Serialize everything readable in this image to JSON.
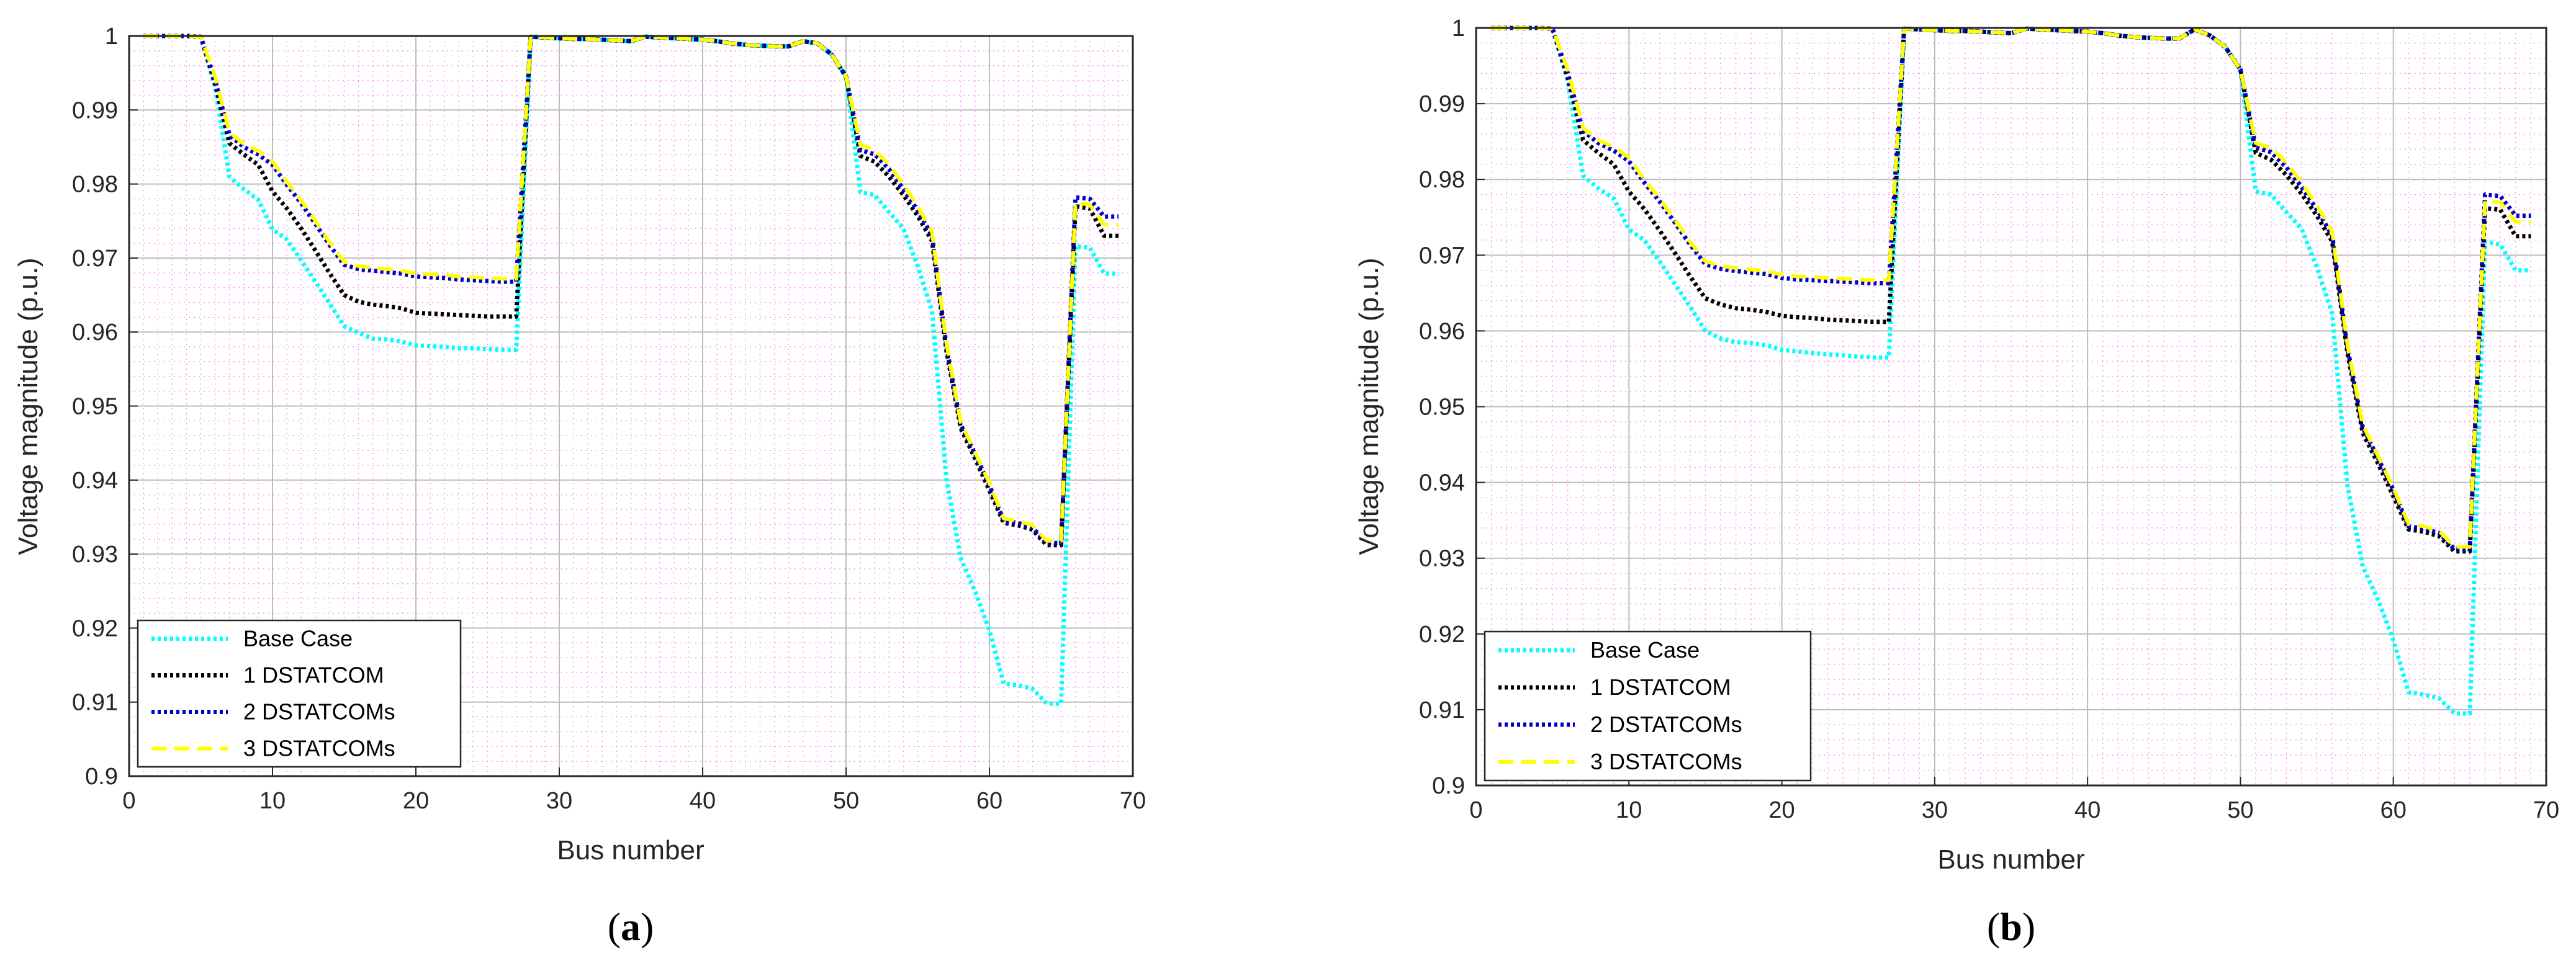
{
  "colors": {
    "base": "#00ffff",
    "one": "#000000",
    "two": "#0000cc",
    "three": "#ffff00",
    "grid_minor": "#ff66ff",
    "grid_major": "#bdbdbd"
  },
  "chart_data": [
    {
      "panel": "a",
      "caption_open": "(",
      "caption_letter": "a",
      "caption_close": ")",
      "type": "line",
      "xlabel": "Bus number",
      "ylabel": "Voltage magnitude (p.u.)",
      "xlim": [
        0,
        70
      ],
      "ylim": [
        0.9,
        1.0
      ],
      "xticks": [
        "0",
        "10",
        "20",
        "30",
        "40",
        "50",
        "60",
        "70"
      ],
      "yticks": [
        "0.9",
        "0.91",
        "0.92",
        "0.93",
        "0.94",
        "0.95",
        "0.96",
        "0.97",
        "0.98",
        "0.99",
        "1"
      ],
      "legend_position": "bottom-left",
      "x": [
        1,
        2,
        3,
        4,
        5,
        6,
        7,
        8,
        9,
        10,
        11,
        12,
        13,
        14,
        15,
        16,
        17,
        18,
        19,
        20,
        21,
        22,
        23,
        24,
        25,
        26,
        27,
        28,
        29,
        30,
        31,
        32,
        33,
        34,
        35,
        36,
        37,
        38,
        39,
        40,
        41,
        42,
        43,
        44,
        45,
        46,
        47,
        48,
        49,
        50,
        51,
        52,
        53,
        54,
        55,
        56,
        57,
        58,
        59,
        60,
        61,
        62,
        63,
        64,
        65,
        66,
        67,
        68,
        69
      ],
      "series": [
        {
          "name": "Base Case",
          "values": [
            1.0,
            1.0,
            1.0,
            1.0,
            0.9999,
            0.9931,
            0.981,
            0.9793,
            0.9779,
            0.9739,
            0.9725,
            0.9697,
            0.9668,
            0.9638,
            0.9608,
            0.9599,
            0.9591,
            0.959,
            0.9587,
            0.9582,
            0.9581,
            0.958,
            0.9578,
            0.9578,
            0.9577,
            0.9576,
            0.9576,
            0.9999,
            0.9998,
            0.9997,
            0.9996,
            0.9996,
            0.9995,
            0.9994,
            0.9993,
            0.9999,
            0.9998,
            0.9997,
            0.9996,
            0.9995,
            0.9993,
            0.999,
            0.9988,
            0.9987,
            0.9986,
            0.9986,
            0.9993,
            0.999,
            0.9975,
            0.9945,
            0.9789,
            0.9785,
            0.9762,
            0.974,
            0.9689,
            0.9628,
            0.9401,
            0.9294,
            0.925,
            0.9197,
            0.9125,
            0.9123,
            0.9118,
            0.9098,
            0.9098,
            0.9716,
            0.9714,
            0.9679,
            0.9679
          ]
        },
        {
          "name": "1 DSTATCOM",
          "values": [
            1.0,
            1.0,
            1.0,
            1.0,
            0.9999,
            0.9935,
            0.9855,
            0.984,
            0.9826,
            0.979,
            0.9767,
            0.974,
            0.971,
            0.9679,
            0.965,
            0.9641,
            0.9637,
            0.9635,
            0.9632,
            0.9626,
            0.9625,
            0.9624,
            0.9623,
            0.9622,
            0.9621,
            0.9621,
            0.9621,
            0.9999,
            0.9998,
            0.9997,
            0.9996,
            0.9996,
            0.9995,
            0.9994,
            0.9993,
            0.9999,
            0.9998,
            0.9997,
            0.9996,
            0.9995,
            0.9993,
            0.999,
            0.9988,
            0.9987,
            0.9986,
            0.9986,
            0.9993,
            0.999,
            0.9975,
            0.9945,
            0.9838,
            0.983,
            0.981,
            0.9785,
            0.9757,
            0.9723,
            0.9575,
            0.947,
            0.9429,
            0.9386,
            0.9342,
            0.9339,
            0.9333,
            0.9312,
            0.9312,
            0.977,
            0.9767,
            0.973,
            0.973
          ]
        },
        {
          "name": "2 DSTATCOMs",
          "values": [
            1.0,
            1.0,
            1.0,
            1.0,
            0.9999,
            0.994,
            0.9866,
            0.985,
            0.984,
            0.9826,
            0.9799,
            0.9774,
            0.9746,
            0.9717,
            0.9691,
            0.9685,
            0.9683,
            0.9681,
            0.9679,
            0.9675,
            0.9674,
            0.9673,
            0.9671,
            0.967,
            0.9669,
            0.9668,
            0.9668,
            0.9999,
            0.9998,
            0.9997,
            0.9996,
            0.9996,
            0.9995,
            0.9994,
            0.9993,
            0.9999,
            0.9998,
            0.9997,
            0.9996,
            0.9995,
            0.9993,
            0.999,
            0.9988,
            0.9987,
            0.9986,
            0.9986,
            0.9993,
            0.999,
            0.9975,
            0.9945,
            0.9846,
            0.984,
            0.982,
            0.9793,
            0.9764,
            0.973,
            0.9581,
            0.9475,
            0.9435,
            0.9393,
            0.9345,
            0.9342,
            0.9336,
            0.9315,
            0.9315,
            0.9782,
            0.978,
            0.9756,
            0.9756
          ]
        },
        {
          "name": "3 DSTATCOMs",
          "values": [
            1.0,
            1.0,
            1.0,
            1.0,
            0.9999,
            0.9945,
            0.987,
            0.9854,
            0.9845,
            0.9831,
            0.9803,
            0.9778,
            0.975,
            0.9721,
            0.9695,
            0.9689,
            0.9687,
            0.9685,
            0.9683,
            0.9679,
            0.9678,
            0.9677,
            0.9675,
            0.9674,
            0.9673,
            0.9672,
            0.9672,
            0.9999,
            0.9998,
            0.9997,
            0.9996,
            0.9996,
            0.9995,
            0.9994,
            0.9993,
            0.9999,
            0.9998,
            0.9997,
            0.9996,
            0.9995,
            0.9993,
            0.999,
            0.9988,
            0.9987,
            0.9986,
            0.9986,
            0.9993,
            0.999,
            0.9975,
            0.9945,
            0.9853,
            0.9846,
            0.9826,
            0.9799,
            0.977,
            0.9735,
            0.9585,
            0.9478,
            0.9438,
            0.9396,
            0.9348,
            0.9345,
            0.9339,
            0.9318,
            0.9318,
            0.9775,
            0.9772,
            0.9745,
            0.9745
          ]
        }
      ]
    },
    {
      "panel": "b",
      "caption_open": "(",
      "caption_letter": "b",
      "caption_close": ")",
      "type": "line",
      "xlabel": "Bus number",
      "ylabel": "Voltage magnitude (p.u.)",
      "xlim": [
        0,
        70
      ],
      "ylim": [
        0.9,
        1.0
      ],
      "xticks": [
        "0",
        "10",
        "20",
        "30",
        "40",
        "50",
        "60",
        "70"
      ],
      "yticks": [
        "0.9",
        "0.91",
        "0.92",
        "0.93",
        "0.94",
        "0.95",
        "0.96",
        "0.97",
        "0.98",
        "0.99",
        "1"
      ],
      "legend_position": "bottom-left",
      "x": [
        1,
        2,
        3,
        4,
        5,
        6,
        7,
        8,
        9,
        10,
        11,
        12,
        13,
        14,
        15,
        16,
        17,
        18,
        19,
        20,
        21,
        22,
        23,
        24,
        25,
        26,
        27,
        28,
        29,
        30,
        31,
        32,
        33,
        34,
        35,
        36,
        37,
        38,
        39,
        40,
        41,
        42,
        43,
        44,
        45,
        46,
        47,
        48,
        49,
        50,
        51,
        52,
        53,
        54,
        55,
        56,
        57,
        58,
        59,
        60,
        61,
        62,
        63,
        64,
        65,
        66,
        67,
        68,
        69
      ],
      "series": [
        {
          "name": "Base Case",
          "values": [
            1.0,
            1.0,
            1.0,
            1.0,
            0.9999,
            0.993,
            0.9805,
            0.9788,
            0.9775,
            0.9734,
            0.972,
            0.9692,
            0.9662,
            0.9632,
            0.96,
            0.959,
            0.9585,
            0.9584,
            0.9581,
            0.9575,
            0.9573,
            0.9571,
            0.9569,
            0.9568,
            0.9566,
            0.9565,
            0.9565,
            0.9999,
            0.9998,
            0.9997,
            0.9996,
            0.9996,
            0.9995,
            0.9994,
            0.9993,
            0.9999,
            0.9998,
            0.9997,
            0.9996,
            0.9995,
            0.9993,
            0.999,
            0.9988,
            0.9987,
            0.9986,
            0.9986,
            0.9998,
            0.999,
            0.9975,
            0.9945,
            0.9784,
            0.978,
            0.9757,
            0.9735,
            0.9684,
            0.9623,
            0.9396,
            0.9289,
            0.9245,
            0.9192,
            0.9123,
            0.912,
            0.9115,
            0.9095,
            0.9095,
            0.9718,
            0.9714,
            0.968,
            0.968
          ]
        },
        {
          "name": "1 DSTATCOM",
          "values": [
            1.0,
            1.0,
            1.0,
            1.0,
            0.9999,
            0.9934,
            0.9852,
            0.9835,
            0.982,
            0.9784,
            0.9761,
            0.9733,
            0.9703,
            0.9672,
            0.9643,
            0.9635,
            0.963,
            0.9628,
            0.9625,
            0.962,
            0.9618,
            0.9617,
            0.9615,
            0.9614,
            0.9613,
            0.9612,
            0.9612,
            0.9999,
            0.9998,
            0.9997,
            0.9996,
            0.9996,
            0.9995,
            0.9994,
            0.9993,
            0.9999,
            0.9998,
            0.9997,
            0.9996,
            0.9995,
            0.9993,
            0.999,
            0.9988,
            0.9987,
            0.9986,
            0.9986,
            0.9998,
            0.999,
            0.9975,
            0.9945,
            0.9835,
            0.9826,
            0.9806,
            0.9781,
            0.9752,
            0.9718,
            0.9571,
            0.9465,
            0.9425,
            0.9382,
            0.9338,
            0.9335,
            0.9329,
            0.9309,
            0.9309,
            0.9762,
            0.976,
            0.9725,
            0.9725
          ]
        },
        {
          "name": "2 DSTATCOMs",
          "values": [
            1.0,
            1.0,
            1.0,
            1.0,
            0.9999,
            0.994,
            0.9864,
            0.9848,
            0.9838,
            0.9824,
            0.9796,
            0.9771,
            0.9743,
            0.9714,
            0.9688,
            0.9682,
            0.9679,
            0.9677,
            0.9675,
            0.967,
            0.9668,
            0.9667,
            0.9666,
            0.9665,
            0.9664,
            0.9663,
            0.9663,
            0.9999,
            0.9998,
            0.9997,
            0.9996,
            0.9996,
            0.9995,
            0.9994,
            0.9993,
            0.9999,
            0.9998,
            0.9997,
            0.9996,
            0.9995,
            0.9993,
            0.999,
            0.9988,
            0.9987,
            0.9986,
            0.9986,
            0.9998,
            0.999,
            0.9975,
            0.9945,
            0.9842,
            0.9836,
            0.9816,
            0.979,
            0.976,
            0.9726,
            0.9578,
            0.9472,
            0.9432,
            0.939,
            0.9342,
            0.9339,
            0.9333,
            0.9312,
            0.9312,
            0.978,
            0.9778,
            0.9752,
            0.9752
          ]
        },
        {
          "name": "3 DSTATCOMs",
          "values": [
            1.0,
            1.0,
            1.0,
            1.0,
            0.9999,
            0.9945,
            0.9868,
            0.9852,
            0.9843,
            0.9829,
            0.98,
            0.9775,
            0.9747,
            0.9718,
            0.9692,
            0.9686,
            0.9683,
            0.9681,
            0.9679,
            0.9674,
            0.9672,
            0.9671,
            0.967,
            0.9669,
            0.9668,
            0.9667,
            0.9667,
            0.9999,
            0.9998,
            0.9997,
            0.9996,
            0.9996,
            0.9995,
            0.9994,
            0.9993,
            0.9999,
            0.9998,
            0.9997,
            0.9996,
            0.9995,
            0.9993,
            0.999,
            0.9988,
            0.9987,
            0.9986,
            0.9986,
            0.9998,
            0.999,
            0.9975,
            0.9945,
            0.9848,
            0.9842,
            0.9822,
            0.9796,
            0.9766,
            0.9731,
            0.9582,
            0.9476,
            0.9435,
            0.9393,
            0.9345,
            0.9342,
            0.9336,
            0.9315,
            0.9315,
            0.9772,
            0.977,
            0.9744,
            0.9744
          ]
        }
      ]
    }
  ]
}
